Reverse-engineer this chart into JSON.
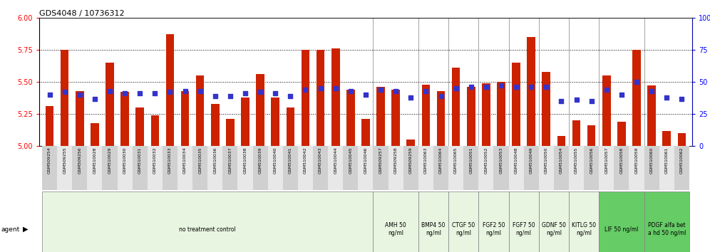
{
  "title": "GDS4048 / 10736312",
  "samples": [
    "GSM509254",
    "GSM509255",
    "GSM509256",
    "GSM510028",
    "GSM510029",
    "GSM510030",
    "GSM510031",
    "GSM510032",
    "GSM510033",
    "GSM510034",
    "GSM510035",
    "GSM510036",
    "GSM510037",
    "GSM510038",
    "GSM510039",
    "GSM510040",
    "GSM510041",
    "GSM510042",
    "GSM510043",
    "GSM510044",
    "GSM510045",
    "GSM510046",
    "GSM509257",
    "GSM509258",
    "GSM509259",
    "GSM510063",
    "GSM510064",
    "GSM510065",
    "GSM510051",
    "GSM510052",
    "GSM510053",
    "GSM510048",
    "GSM510049",
    "GSM510050",
    "GSM510054",
    "GSM510055",
    "GSM510056",
    "GSM510057",
    "GSM510058",
    "GSM510059",
    "GSM510060",
    "GSM510061",
    "GSM510062"
  ],
  "bar_values": [
    5.31,
    5.75,
    5.43,
    5.18,
    5.65,
    5.42,
    5.3,
    5.24,
    5.87,
    5.43,
    5.55,
    5.33,
    5.21,
    5.38,
    5.56,
    5.38,
    5.3,
    5.75,
    5.75,
    5.76,
    5.44,
    5.21,
    5.46,
    5.44,
    5.05,
    5.48,
    5.43,
    5.61,
    5.46,
    5.49,
    5.5,
    5.65,
    5.85,
    5.58,
    5.08,
    5.2,
    5.16,
    5.55,
    5.19,
    5.75,
    5.47,
    5.12,
    5.1
  ],
  "percentile_values": [
    40,
    42,
    40,
    37,
    43,
    41,
    41,
    41,
    42,
    43,
    43,
    39,
    39,
    41,
    42,
    41,
    39,
    44,
    45,
    45,
    43,
    40,
    44,
    43,
    38,
    43,
    39,
    45,
    46,
    46,
    47,
    46,
    46,
    46,
    35,
    36,
    35,
    44,
    40,
    50,
    43,
    38,
    37
  ],
  "ylim_left": [
    5.0,
    6.0
  ],
  "ylim_right": [
    0,
    100
  ],
  "yticks_left": [
    5.0,
    5.25,
    5.5,
    5.75,
    6.0
  ],
  "yticks_right": [
    0,
    25,
    50,
    75,
    100
  ],
  "bar_color": "#CC2200",
  "dot_color": "#3333CC",
  "bar_base": 5.0,
  "groups": [
    {
      "label": "no treatment control",
      "start": 0,
      "end": 22,
      "color": "#e8f5e0"
    },
    {
      "label": "AMH 50\nng/ml",
      "start": 22,
      "end": 25,
      "color": "#e8f5e0"
    },
    {
      "label": "BMP4 50\nng/ml",
      "start": 25,
      "end": 27,
      "color": "#e8f5e0"
    },
    {
      "label": "CTGF 50\nng/ml",
      "start": 27,
      "end": 29,
      "color": "#e8f5e0"
    },
    {
      "label": "FGF2 50\nng/ml",
      "start": 29,
      "end": 31,
      "color": "#e8f5e0"
    },
    {
      "label": "FGF7 50\nng/ml",
      "start": 31,
      "end": 33,
      "color": "#e8f5e0"
    },
    {
      "label": "GDNF 50\nng/ml",
      "start": 33,
      "end": 35,
      "color": "#e8f5e0"
    },
    {
      "label": "KITLG 50\nng/ml",
      "start": 35,
      "end": 37,
      "color": "#e8f5e0"
    },
    {
      "label": "LIF 50 ng/ml",
      "start": 37,
      "end": 40,
      "color": "#66cc66"
    },
    {
      "label": "PDGF alfa bet\na hd 50 ng/ml",
      "start": 40,
      "end": 43,
      "color": "#66cc66"
    }
  ]
}
